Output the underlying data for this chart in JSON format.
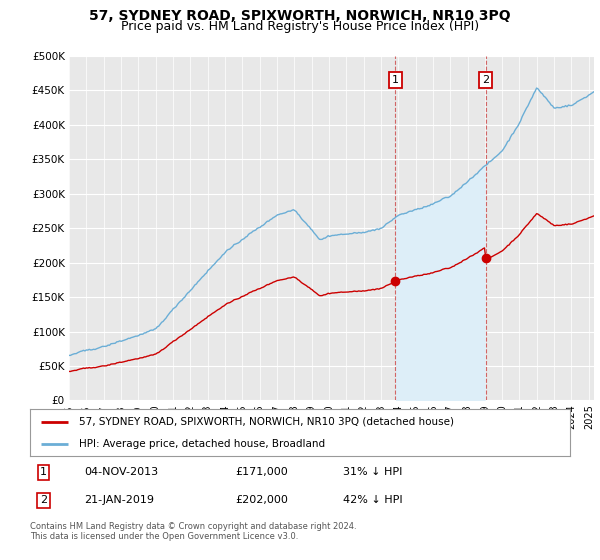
{
  "title": "57, SYDNEY ROAD, SPIXWORTH, NORWICH, NR10 3PQ",
  "subtitle": "Price paid vs. HM Land Registry's House Price Index (HPI)",
  "ylabel_ticks": [
    "£0",
    "£50K",
    "£100K",
    "£150K",
    "£200K",
    "£250K",
    "£300K",
    "£350K",
    "£400K",
    "£450K",
    "£500K"
  ],
  "ytick_values": [
    0,
    50000,
    100000,
    150000,
    200000,
    250000,
    300000,
    350000,
    400000,
    450000,
    500000
  ],
  "ylim": [
    0,
    500000
  ],
  "xlim_start": 1995.5,
  "xlim_end": 2025.3,
  "hpi_color": "#6BAED6",
  "hpi_fill_color": "#DDEEF8",
  "price_color": "#CC0000",
  "sale1_t": 2013.84,
  "sale1_p": 171000,
  "sale2_t": 2019.05,
  "sale2_p": 202000,
  "legend_label_price": "57, SYDNEY ROAD, SPIXWORTH, NORWICH, NR10 3PQ (detached house)",
  "legend_label_hpi": "HPI: Average price, detached house, Broadland",
  "table_row1": [
    "1",
    "04-NOV-2013",
    "£171,000",
    "31% ↓ HPI"
  ],
  "table_row2": [
    "2",
    "21-JAN-2019",
    "£202,000",
    "42% ↓ HPI"
  ],
  "footer": "Contains HM Land Registry data © Crown copyright and database right 2024.\nThis data is licensed under the Open Government Licence v3.0.",
  "title_fontsize": 10,
  "subtitle_fontsize": 9,
  "background_color": "#FFFFFF",
  "plot_bg_color": "#E8E8E8",
  "grid_color": "#FFFFFF",
  "xtick_years": [
    1995,
    1996,
    1997,
    1998,
    1999,
    2000,
    2001,
    2002,
    2003,
    2004,
    2005,
    2006,
    2007,
    2008,
    2009,
    2010,
    2011,
    2012,
    2013,
    2014,
    2015,
    2016,
    2017,
    2018,
    2019,
    2020,
    2021,
    2022,
    2023,
    2024,
    2025
  ]
}
